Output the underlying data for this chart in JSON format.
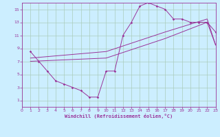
{
  "xlabel": "Windchill (Refroidissement éolien,°C)",
  "bg_color": "#cceeff",
  "line_color": "#993399",
  "grid_color": "#aaccbb",
  "xlim": [
    0,
    23
  ],
  "ylim": [
    0,
    16
  ],
  "xticks": [
    0,
    1,
    2,
    3,
    4,
    5,
    6,
    7,
    8,
    9,
    10,
    11,
    12,
    13,
    14,
    15,
    16,
    17,
    18,
    19,
    20,
    21,
    22,
    23
  ],
  "yticks": [
    1,
    3,
    5,
    7,
    9,
    11,
    13,
    15
  ],
  "curve_x": [
    1,
    2,
    3,
    4,
    5,
    6,
    7,
    8,
    9,
    10,
    11,
    12,
    13,
    14,
    15,
    16,
    17,
    18,
    19,
    20,
    21,
    22,
    23
  ],
  "curve_y": [
    8.5,
    7.0,
    5.5,
    4.0,
    3.5,
    3.0,
    2.5,
    1.5,
    1.5,
    5.5,
    5.5,
    11.0,
    13.0,
    15.5,
    16.0,
    15.5,
    15.0,
    13.5,
    13.5,
    13.0,
    13.0,
    13.0,
    11.5
  ],
  "trend1_x": [
    1,
    10,
    17,
    22,
    23
  ],
  "trend1_y": [
    7.5,
    8.5,
    11.5,
    13.5,
    9.5
  ],
  "trend2_x": [
    1,
    10,
    17,
    22,
    23
  ],
  "trend2_y": [
    7.0,
    7.5,
    10.5,
    13.0,
    9.5
  ]
}
